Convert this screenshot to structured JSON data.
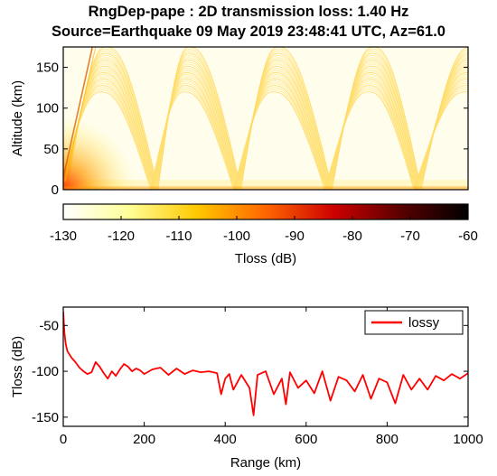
{
  "title": {
    "line1": "RngDep-pape : 2D transmission loss: 1.40 Hz",
    "line2": "Source=Earthquake 09 May 2019 23:48:41 UTC, Az=61.0"
  },
  "chart_data": [
    {
      "type": "heatmap",
      "ylabel": "Altitude (km)",
      "x_range": [
        0,
        1000
      ],
      "y_range": [
        0,
        175
      ],
      "y_ticks": [
        "0",
        "50",
        "100",
        "150"
      ],
      "ray_arches": [
        {
          "start_km": 0,
          "turn_km": 100,
          "return_km": 225
        },
        {
          "start_km": 225,
          "turn_km": 305,
          "return_km": 430
        },
        {
          "start_km": 430,
          "turn_km": 525,
          "return_km": 655
        },
        {
          "start_km": 655,
          "turn_km": 760,
          "return_km": 875
        },
        {
          "start_km": 875,
          "turn_km": 1000,
          "return_km": 1100
        }
      ]
    },
    {
      "type": "colorbar",
      "label": "Tloss (dB)",
      "range": [
        -130,
        -60
      ],
      "ticks": [
        "-130",
        "-120",
        "-110",
        "-100",
        "-90",
        "-80",
        "-70",
        "-60"
      ],
      "colormap": [
        "#ffffff",
        "#ffff99",
        "#ffc800",
        "#ff6600",
        "#cc0000",
        "#550000",
        "#000000"
      ]
    },
    {
      "type": "line",
      "xlabel": "Range (km)",
      "ylabel": "Tloss (dB)",
      "xlim": [
        0,
        1000
      ],
      "ylim": [
        -160,
        -30
      ],
      "x_ticks": [
        "0",
        "200",
        "400",
        "600",
        "800",
        "1000"
      ],
      "y_ticks": [
        "-50",
        "-100",
        "-150"
      ],
      "legend_position": "top-right",
      "series": [
        {
          "name": "lossy",
          "color": "#ff0000",
          "x": [
            0,
            3,
            6,
            10,
            20,
            30,
            40,
            50,
            60,
            70,
            80,
            90,
            100,
            110,
            120,
            130,
            140,
            150,
            160,
            170,
            180,
            190,
            200,
            220,
            240,
            260,
            280,
            300,
            320,
            340,
            360,
            380,
            390,
            400,
            410,
            420,
            440,
            460,
            470,
            480,
            500,
            520,
            540,
            550,
            560,
            580,
            600,
            620,
            640,
            660,
            680,
            700,
            720,
            740,
            760,
            780,
            800,
            820,
            840,
            860,
            880,
            900,
            920,
            940,
            960,
            980,
            1000
          ],
          "y": [
            -35,
            -58,
            -70,
            -78,
            -85,
            -90,
            -96,
            -100,
            -103,
            -101,
            -90,
            -95,
            -102,
            -108,
            -100,
            -105,
            -98,
            -92,
            -95,
            -100,
            -97,
            -99,
            -103,
            -98,
            -96,
            -104,
            -97,
            -103,
            -99,
            -101,
            -100,
            -102,
            -125,
            -108,
            -103,
            -120,
            -104,
            -118,
            -148,
            -104,
            -100,
            -125,
            -108,
            -136,
            -101,
            -118,
            -110,
            -124,
            -100,
            -132,
            -106,
            -110,
            -122,
            -104,
            -130,
            -108,
            -112,
            -135,
            -104,
            -120,
            -108,
            -120,
            -105,
            -110,
            -103,
            -108,
            -102
          ]
        }
      ]
    }
  ]
}
